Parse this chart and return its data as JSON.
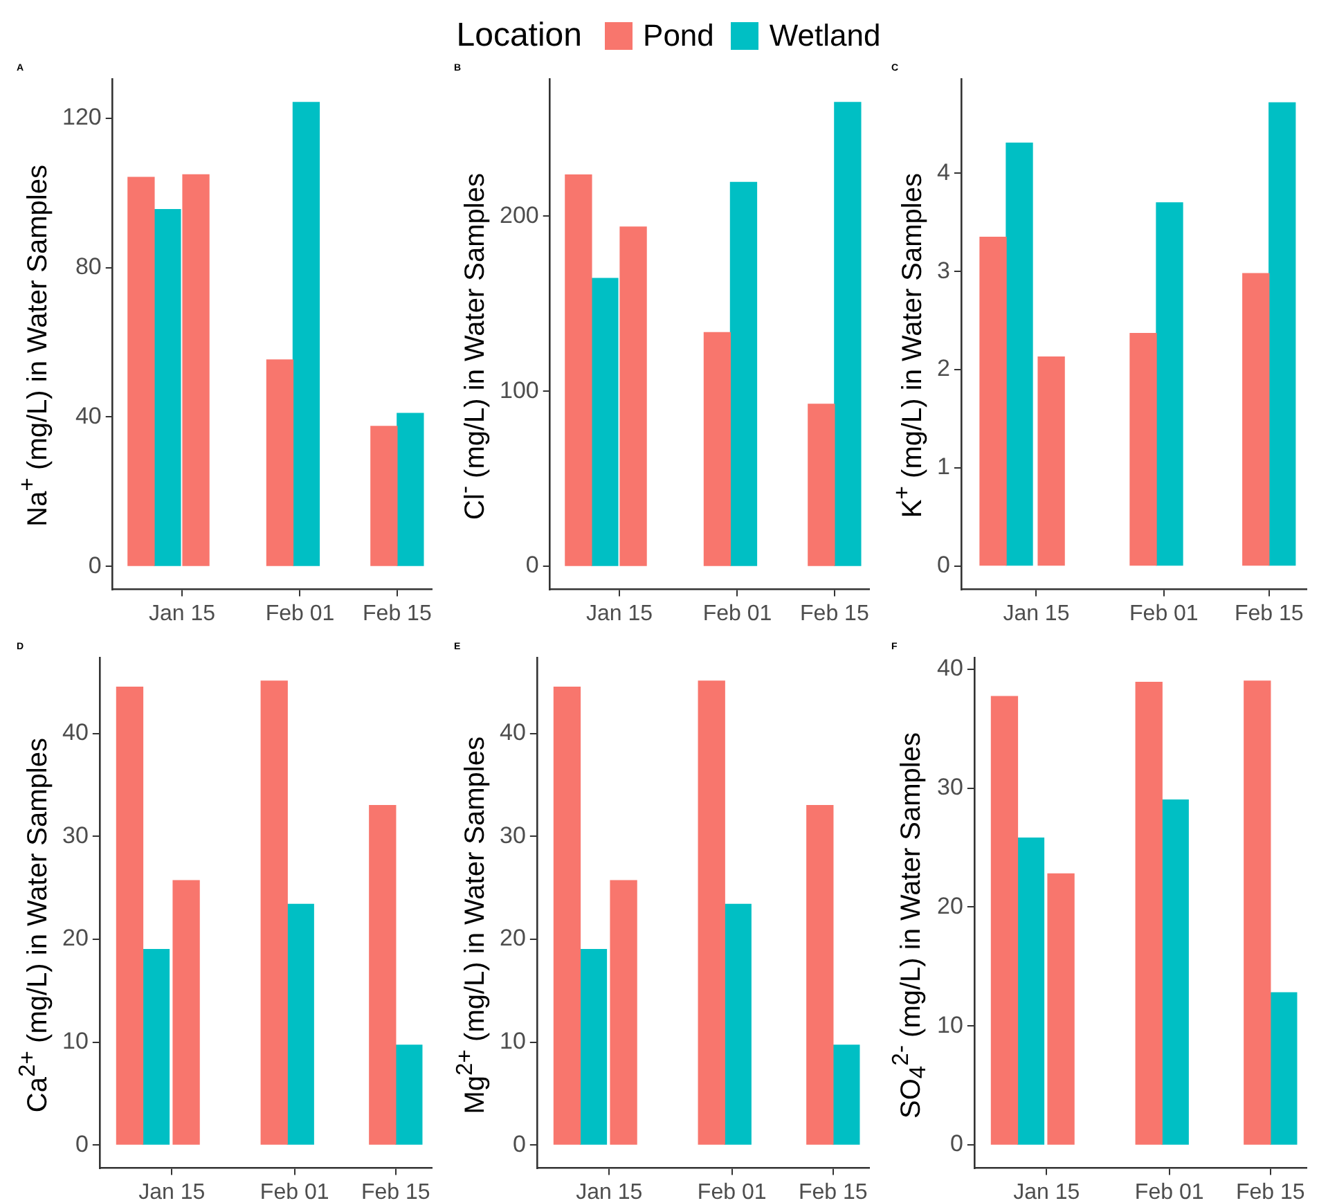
{
  "chart_data": [
    {
      "type": "bar",
      "annotations": [
        "A"
      ],
      "ylabel": "Na$^{+}$ (mg/L) in Water Samples",
      "legend_title": "Location",
      "legend": "top",
      "xlim": [
        "--01-05",
        "--02-20"
      ],
      "xticks": [
        {
          "value": "--01-15",
          "label": "Jan 15"
        },
        {
          "value": "--02-01",
          "label": "Feb 01"
        },
        {
          "value": "--02-15",
          "label": "Feb 15"
        }
      ],
      "ylim": [
        -6.2,
        130.5
      ],
      "yticks": [
        0,
        40,
        80,
        120
      ],
      "series": [
        {
          "name": "Pond",
          "color": "#f8766d",
          "x": [
            "--01-11",
            "--01-17",
            "--01-31",
            "--02-15"
          ],
          "values": [
            104.2,
            104.9,
            55.3,
            37.5
          ]
        },
        {
          "name": "Wetland",
          "color": "#00bfc4",
          "x": [
            "--01-11",
            "--01-31",
            "--02-15"
          ],
          "values": [
            95.6,
            124.3,
            41.0
          ]
        }
      ]
    },
    {
      "type": "bar",
      "annotations": [
        "B"
      ],
      "ylabel": "Cl$^{-}$ (mg/L) in Water Samples",
      "xlim": [
        "--01-05",
        "--02-20"
      ],
      "xticks": [
        {
          "value": "--01-15",
          "label": "Jan 15"
        },
        {
          "value": "--02-01",
          "label": "Feb 01"
        },
        {
          "value": "--02-15",
          "label": "Feb 15"
        }
      ],
      "ylim": [
        -13.3,
        278.3
      ],
      "yticks": [
        0,
        100,
        200
      ],
      "series": [
        {
          "color": "#f8766d",
          "x": [
            "--01-11",
            "--01-17",
            "--01-31",
            "--02-15"
          ],
          "values": [
            223.6,
            193.8,
            133.5,
            92.6
          ]
        },
        {
          "color": "#00bfc4",
          "x": [
            "--01-11",
            "--01-31",
            "--02-15"
          ],
          "values": [
            164.5,
            219.4,
            265
          ]
        }
      ]
    },
    {
      "type": "bar",
      "annotations": [
        "C"
      ],
      "ylabel": "K$^{+}$ (mg/L) in Water Samples",
      "xlim": [
        "--01-05",
        "--02-20"
      ],
      "xticks": [
        {
          "value": "--01-15",
          "label": "Jan 15"
        },
        {
          "value": "--02-01",
          "label": "Feb 01"
        },
        {
          "value": "--02-15",
          "label": "Feb 15"
        }
      ],
      "ylim": [
        -0.24,
        4.96
      ],
      "yticks": [
        0,
        1,
        2,
        3,
        4
      ],
      "series": [
        {
          "color": "#f8766d",
          "x": [
            "--01-11",
            "--01-17",
            "--01-31",
            "--02-15"
          ],
          "values": [
            3.35,
            2.13,
            2.37,
            2.98
          ]
        },
        {
          "color": "#00bfc4",
          "x": [
            "--01-11",
            "--01-31",
            "--02-15"
          ],
          "values": [
            4.31,
            3.7,
            4.72
          ]
        }
      ]
    },
    {
      "type": "bar",
      "annotations": [
        "D"
      ],
      "ylabel": "Ca$^{2+}$ (mg/L) in Water Samples",
      "xlim": [
        "--01-05",
        "--02-20"
      ],
      "xticks": [
        {
          "value": "--01-15",
          "label": "Jan 15"
        },
        {
          "value": "--02-01",
          "label": "Feb 01"
        },
        {
          "value": "--02-15",
          "label": "Feb 15"
        }
      ],
      "ylim": [
        -2.25,
        47.35
      ],
      "yticks": [
        0,
        10,
        20,
        30,
        40
      ],
      "series": [
        {
          "color": "#f8766d",
          "x": [
            "--01-11",
            "--01-17",
            "--01-31",
            "--02-15"
          ],
          "values": [
            44.5,
            25.7,
            45.1,
            33.0
          ]
        },
        {
          "color": "#00bfc4",
          "x": [
            "--01-11",
            "--01-31",
            "--02-15"
          ],
          "values": [
            19.0,
            23.4,
            9.7
          ]
        }
      ]
    },
    {
      "type": "bar",
      "annotations": [
        "E"
      ],
      "ylabel": "Mg$^{2+}$ (mg/L) in Water Samples",
      "xlim": [
        "--01-05",
        "--02-20"
      ],
      "xticks": [
        {
          "value": "--01-15",
          "label": "Jan 15"
        },
        {
          "value": "--02-01",
          "label": "Feb 01"
        },
        {
          "value": "--02-15",
          "label": "Feb 15"
        }
      ],
      "ylim": [
        -2.25,
        47.35
      ],
      "yticks": [
        0,
        10,
        20,
        30,
        40
      ],
      "series": [
        {
          "color": "#f8766d",
          "x": [
            "--01-11",
            "--01-17",
            "--01-31",
            "--02-15"
          ],
          "values": [
            44.5,
            25.7,
            45.1,
            33.0
          ]
        },
        {
          "color": "#00bfc4",
          "x": [
            "--01-11",
            "--01-31",
            "--02-15"
          ],
          "values": [
            19.0,
            23.4,
            9.7
          ]
        }
      ]
    },
    {
      "type": "bar",
      "annotations": [
        "F"
      ],
      "ylabel": "SO$_{4}$$^{2-}$ (mg/L) in Water Samples",
      "xlim": [
        "--01-05",
        "--02-20"
      ],
      "xticks": [
        {
          "value": "--01-15",
          "label": "Jan 15"
        },
        {
          "value": "--02-01",
          "label": "Feb 01"
        },
        {
          "value": "--02-15",
          "label": "Feb 15"
        }
      ],
      "ylim": [
        -1.95,
        40.95
      ],
      "yticks": [
        0,
        10,
        20,
        30,
        40
      ],
      "series": [
        {
          "color": "#f8766d",
          "x": [
            "--01-11",
            "--01-17",
            "--01-31",
            "--02-15"
          ],
          "values": [
            37.7,
            22.8,
            38.9,
            39.0
          ]
        },
        {
          "color": "#00bfc4",
          "x": [
            "--01-11",
            "--01-31",
            "--02-15"
          ],
          "values": [
            25.8,
            29.0,
            12.8
          ]
        }
      ]
    }
  ]
}
